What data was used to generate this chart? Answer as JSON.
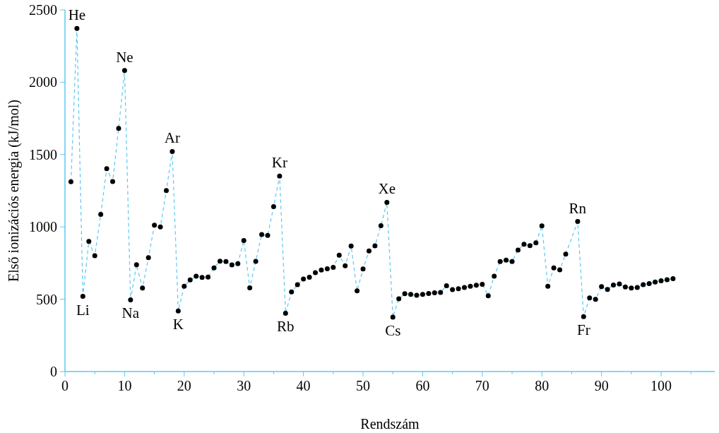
{
  "chart_data": {
    "type": "line",
    "xlabel": "Rendszám",
    "ylabel": "Első ionizációs energia (kJ/mol)",
    "xlim": [
      0,
      109
    ],
    "xticks": [
      0,
      {
        "value": 5,
        "label": null
      },
      10,
      {
        "value": 15,
        "label": null
      },
      20,
      {
        "value": 25,
        "label": null
      },
      30,
      {
        "value": 35,
        "label": null
      },
      40,
      {
        "value": 45,
        "label": null
      },
      50,
      {
        "value": 55,
        "label": null
      },
      60,
      {
        "value": 65,
        "label": null
      },
      70,
      {
        "value": 75,
        "label": null
      },
      80,
      {
        "value": 85,
        "label": null
      },
      90,
      {
        "value": 95,
        "label": null
      },
      100,
      {
        "value": 105,
        "label": null
      }
    ],
    "ylim": [
      0,
      2500
    ],
    "yticks": [
      0,
      500,
      1000,
      1500,
      2000,
      2500
    ],
    "grid": false,
    "x": [
      1,
      2,
      3,
      4,
      5,
      6,
      7,
      8,
      9,
      10,
      11,
      12,
      13,
      14,
      15,
      16,
      17,
      18,
      19,
      20,
      21,
      22,
      23,
      24,
      25,
      26,
      27,
      28,
      29,
      30,
      31,
      32,
      33,
      34,
      35,
      36,
      37,
      38,
      39,
      40,
      41,
      42,
      43,
      44,
      45,
      46,
      47,
      48,
      49,
      50,
      51,
      52,
      53,
      54,
      55,
      56,
      57,
      58,
      59,
      60,
      61,
      62,
      63,
      64,
      65,
      66,
      67,
      68,
      69,
      70,
      71,
      72,
      73,
      74,
      75,
      76,
      77,
      78,
      79,
      80,
      81,
      82,
      83,
      84,
      85,
      86,
      87,
      88,
      89,
      90,
      91,
      92,
      93,
      94,
      95,
      96,
      97,
      98,
      99,
      100,
      101,
      102
    ],
    "series": [
      {
        "color": "#5bc8f0",
        "marker": "none",
        "line_style": "dashed",
        "values": [
          1312,
          2372,
          520,
          900,
          801,
          1086,
          1402,
          1314,
          1681,
          2081,
          496,
          738,
          578,
          787,
          1012,
          1000,
          1251,
          1521,
          419,
          590,
          633,
          659,
          651,
          653,
          717,
          763,
          760,
          737,
          746,
          906,
          579,
          762,
          947,
          941,
          1140,
          1351,
          403,
          550,
          600,
          640,
          652,
          684,
          702,
          710,
          720,
          804,
          731,
          868,
          558,
          709,
          834,
          869,
          1008,
          1170,
          376,
          503,
          538,
          534,
          527,
          533,
          540,
          545,
          547,
          593,
          566,
          573,
          581,
          589,
          597,
          603,
          524,
          659,
          761,
          770,
          760,
          840,
          880,
          870,
          890,
          1007,
          589,
          716,
          703,
          812,
          null,
          1037,
          380,
          509,
          499,
          587,
          568,
          598,
          605,
          585,
          578,
          581,
          601,
          608,
          619,
          627,
          635,
          642
        ]
      },
      {
        "type": "scatter",
        "color": "#000000",
        "marker": "circle",
        "values": [
          1312,
          2372,
          520,
          900,
          801,
          1086,
          1402,
          1314,
          1681,
          2081,
          496,
          738,
          578,
          787,
          1012,
          1000,
          1251,
          1521,
          419,
          590,
          633,
          659,
          651,
          653,
          717,
          763,
          760,
          737,
          746,
          906,
          579,
          762,
          947,
          941,
          1140,
          1351,
          403,
          550,
          600,
          640,
          652,
          684,
          702,
          710,
          720,
          804,
          731,
          868,
          558,
          709,
          834,
          869,
          1008,
          1170,
          376,
          503,
          538,
          534,
          527,
          533,
          540,
          545,
          547,
          593,
          566,
          573,
          581,
          589,
          597,
          603,
          524,
          659,
          761,
          770,
          760,
          840,
          880,
          870,
          890,
          1007,
          589,
          716,
          703,
          812,
          null,
          1037,
          380,
          509,
          499,
          587,
          568,
          598,
          605,
          585,
          578,
          581,
          601,
          608,
          619,
          627,
          635,
          642
        ]
      }
    ],
    "annotations": [
      {
        "text": "He",
        "x": 2,
        "y": 2372
      },
      {
        "text": "Li",
        "x": 3,
        "y": 520
      },
      {
        "text": "Ne",
        "x": 10,
        "y": 2081
      },
      {
        "text": "Na",
        "x": 11,
        "y": 496
      },
      {
        "text": "Ar",
        "x": 18,
        "y": 1521
      },
      {
        "text": "K",
        "x": 19,
        "y": 419
      },
      {
        "text": "Kr",
        "x": 36,
        "y": 1351
      },
      {
        "text": "Rb",
        "x": 37,
        "y": 403
      },
      {
        "text": "Xe",
        "x": 54,
        "y": 1170
      },
      {
        "text": "Cs",
        "x": 55,
        "y": 376
      },
      {
        "text": "Rn",
        "x": 86,
        "y": 1037
      },
      {
        "text": "Fr",
        "x": 87,
        "y": 380
      }
    ]
  }
}
